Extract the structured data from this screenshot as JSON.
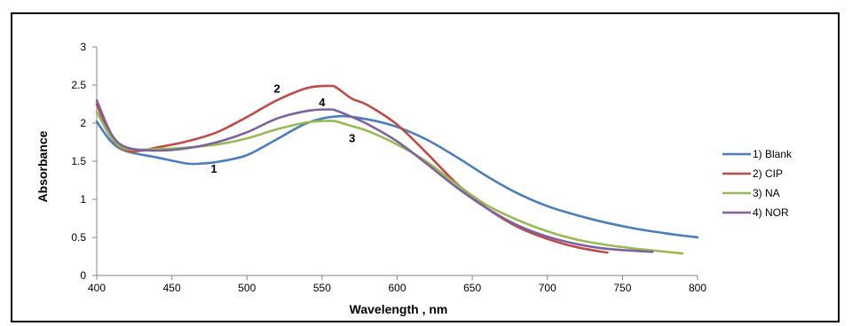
{
  "chart_data": {
    "type": "line",
    "xlabel": "Wavelength , nm",
    "ylabel": "Absorbance",
    "xlim": [
      400,
      800
    ],
    "ylim": [
      0,
      3
    ],
    "xticks": [
      "400",
      "450",
      "500",
      "550",
      "600",
      "650",
      "700",
      "750",
      "800"
    ],
    "yticks": [
      "0",
      "0.5",
      "1",
      "1.5",
      "2",
      "2.5",
      "3"
    ],
    "grid": false,
    "legend_position": "right",
    "series": [
      {
        "name": "1) Blank",
        "color": "#4A7EBB",
        "x": [
          400,
          410,
          420,
          440,
          460,
          470,
          480,
          500,
          520,
          540,
          560,
          580,
          600,
          620,
          640,
          660,
          680,
          700,
          720,
          740,
          760,
          780,
          800
        ],
        "y": [
          2.02,
          1.75,
          1.63,
          1.55,
          1.47,
          1.47,
          1.49,
          1.58,
          1.79,
          2.0,
          2.09,
          2.05,
          1.95,
          1.78,
          1.55,
          1.3,
          1.08,
          0.91,
          0.79,
          0.69,
          0.61,
          0.55,
          0.5
        ]
      },
      {
        "name": "2) CIP",
        "color": "#BE4B48",
        "x": [
          400,
          410,
          420,
          430,
          440,
          460,
          480,
          500,
          520,
          540,
          555,
          560,
          570,
          580,
          600,
          620,
          640,
          660,
          680,
          700,
          720,
          740
        ],
        "y": [
          2.25,
          1.8,
          1.64,
          1.64,
          1.68,
          1.76,
          1.88,
          2.08,
          2.3,
          2.46,
          2.49,
          2.46,
          2.32,
          2.24,
          1.98,
          1.6,
          1.2,
          0.88,
          0.64,
          0.48,
          0.37,
          0.3
        ]
      },
      {
        "name": "3) NA",
        "color": "#98B954",
        "x": [
          400,
          410,
          420,
          440,
          460,
          480,
          500,
          520,
          540,
          555,
          560,
          570,
          580,
          600,
          620,
          640,
          660,
          680,
          700,
          720,
          740,
          760,
          790
        ],
        "y": [
          2.15,
          1.8,
          1.66,
          1.66,
          1.68,
          1.72,
          1.8,
          1.92,
          2.01,
          2.03,
          2.02,
          1.96,
          1.9,
          1.72,
          1.49,
          1.19,
          0.92,
          0.73,
          0.58,
          0.47,
          0.4,
          0.35,
          0.29
        ]
      },
      {
        "name": "4) NOR",
        "color": "#7D60A0",
        "x": [
          400,
          410,
          420,
          440,
          460,
          480,
          500,
          520,
          540,
          555,
          560,
          570,
          580,
          600,
          620,
          640,
          660,
          680,
          700,
          720,
          740,
          770
        ],
        "y": [
          2.3,
          1.85,
          1.68,
          1.64,
          1.67,
          1.75,
          1.88,
          2.06,
          2.16,
          2.18,
          2.16,
          2.08,
          1.99,
          1.76,
          1.46,
          1.15,
          0.88,
          0.66,
          0.51,
          0.41,
          0.35,
          0.31
        ]
      }
    ],
    "annotations": [
      {
        "text": "1",
        "x": 478,
        "y": 1.35
      },
      {
        "text": "2",
        "x": 520,
        "y": 2.4
      },
      {
        "text": "3",
        "x": 570,
        "y": 1.75
      },
      {
        "text": "4",
        "x": 550,
        "y": 2.22
      }
    ]
  }
}
